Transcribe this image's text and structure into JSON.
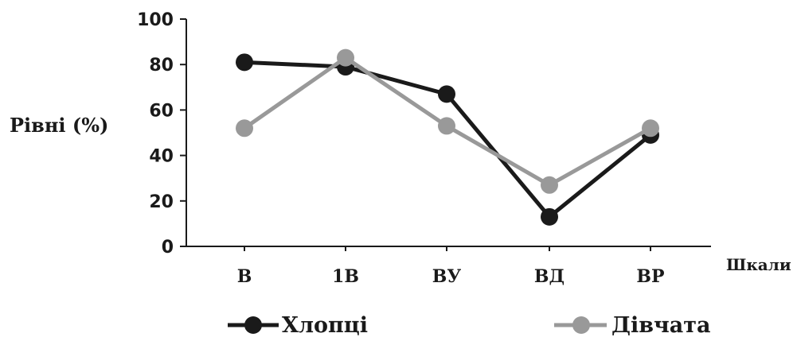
{
  "chart_data": {
    "type": "line",
    "ylabel": "Рівні (%)",
    "xlabel": "Шкали",
    "categories": [
      "В",
      "1В",
      "ВУ",
      "ВД",
      "ВР"
    ],
    "ylim": [
      0,
      100
    ],
    "yticks": [
      0,
      20,
      40,
      60,
      80,
      100
    ],
    "grid": false,
    "legend_position": "bottom",
    "series": [
      {
        "name": "Хлопці",
        "color": "#1a1a1a",
        "values": [
          81,
          79,
          67,
          13,
          49
        ]
      },
      {
        "name": "Дівчата",
        "color": "#999999",
        "values": [
          52,
          83,
          53,
          27,
          52
        ]
      }
    ]
  }
}
